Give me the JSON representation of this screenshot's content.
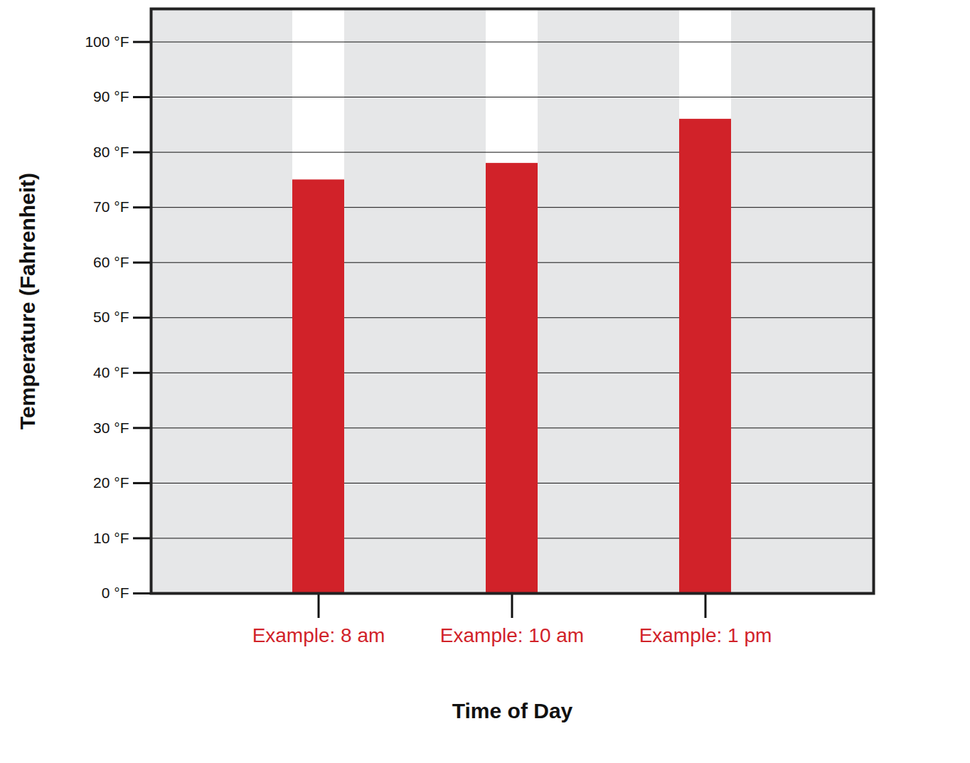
{
  "chart_data": {
    "type": "bar",
    "categories": [
      "Example: 8 am",
      "Example: 10 am",
      "Example: 1 pm"
    ],
    "values": [
      75,
      78,
      86
    ],
    "color": "#d12229",
    "x_label": "Time of Day",
    "y_label": "Temperature (Fahrenheit)",
    "ylim": [
      0,
      106
    ],
    "yticks": [
      {
        "value": 0,
        "label": "0 °F"
      },
      {
        "value": 10,
        "label": "10 °F"
      },
      {
        "value": 20,
        "label": "20 °F"
      },
      {
        "value": 30,
        "label": "30 °F"
      },
      {
        "value": 40,
        "label": "40 °F"
      },
      {
        "value": 50,
        "label": "50 °F"
      },
      {
        "value": 60,
        "label": "60 °F"
      },
      {
        "value": 70,
        "label": "70 °F"
      },
      {
        "value": 80,
        "label": "80 °F"
      },
      {
        "value": 90,
        "label": "90 °F"
      },
      {
        "value": 100,
        "label": "100 °F"
      }
    ],
    "grid": true
  }
}
